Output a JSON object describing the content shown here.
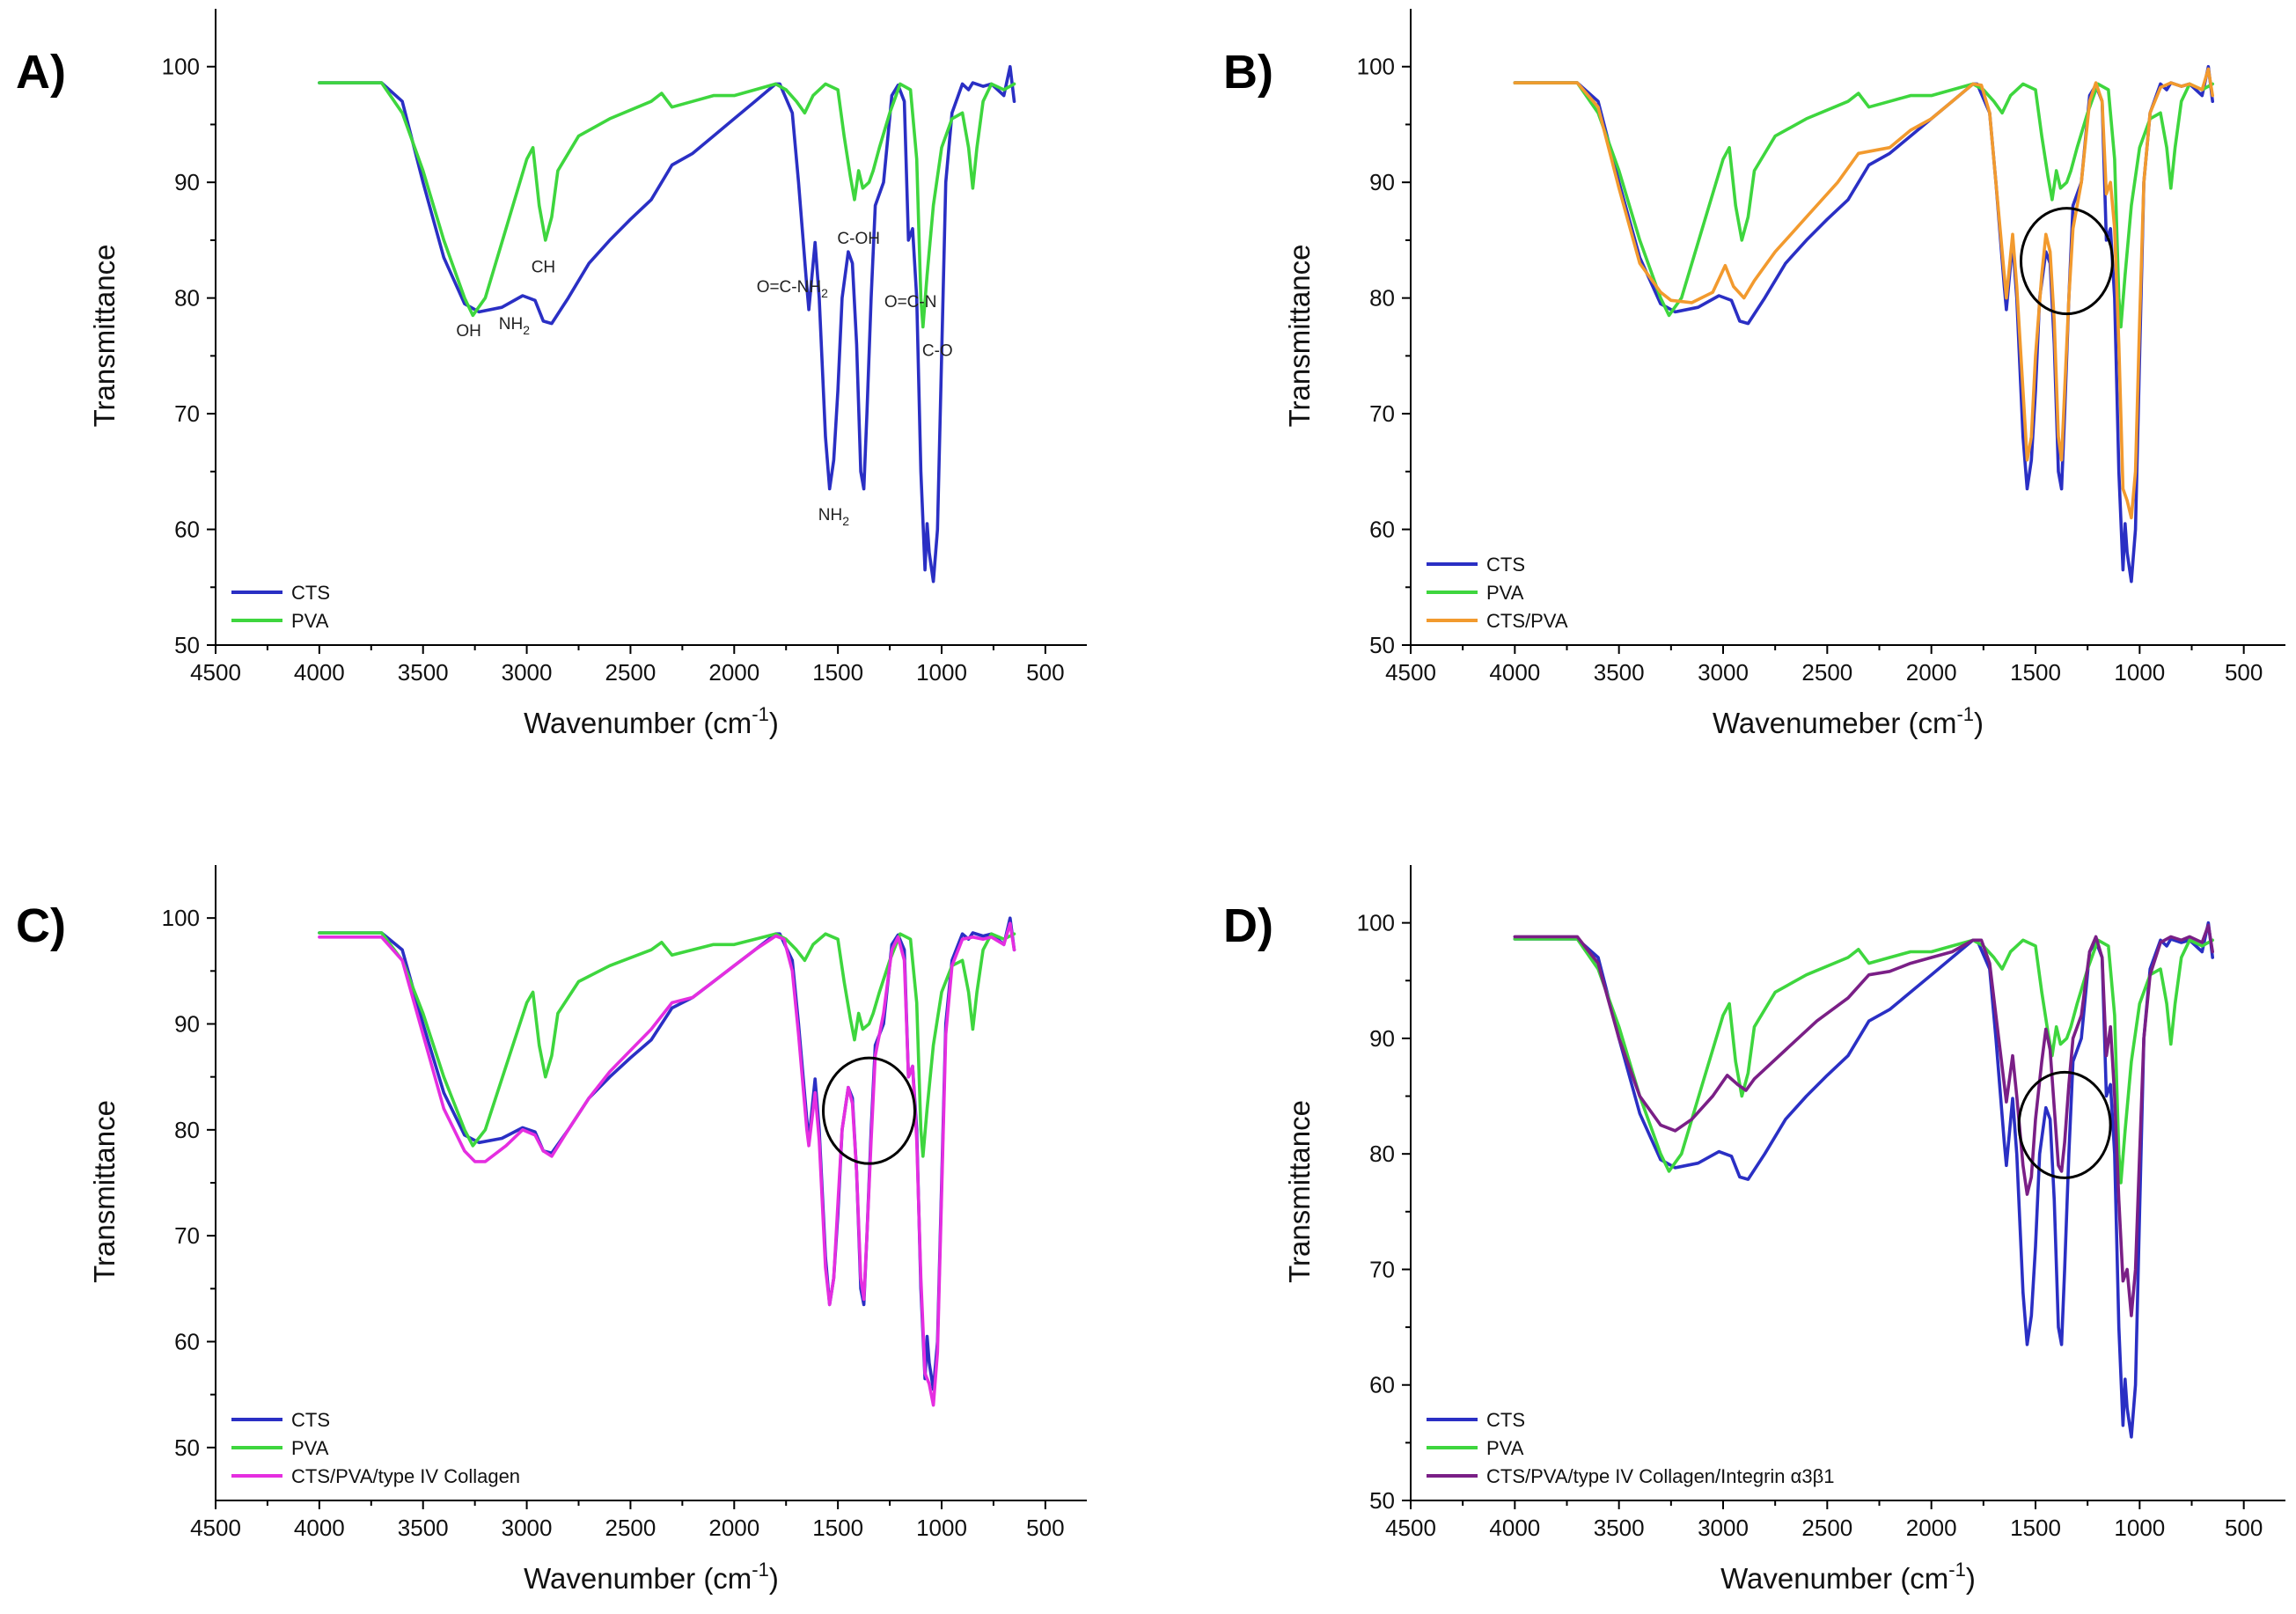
{
  "figure_labels": {
    "panel_letters": [
      "A)",
      "B)",
      "C)",
      "D)"
    ]
  },
  "chart_data": [
    {
      "type": "line",
      "panel": "A)",
      "title": "",
      "xlabel": "Wavenumber (cm-1)",
      "ylabel": "Transmittance",
      "xlim": [
        4500,
        300
      ],
      "ylim": [
        50,
        105
      ],
      "xticks": [
        4500,
        4000,
        3500,
        3000,
        2500,
        2000,
        1500,
        1000,
        500
      ],
      "yticks": [
        50,
        60,
        70,
        80,
        90,
        100
      ],
      "legend": "bottom-left",
      "series": [
        {
          "name": "CTS",
          "color": "#2a2fc4",
          "key": "CTS"
        },
        {
          "name": "PVA",
          "color": "#3ed63e",
          "key": "PVA"
        }
      ],
      "annotations": [
        {
          "text": "OH",
          "x": 3280,
          "y": 76.7
        },
        {
          "text": "NH2",
          "x": 3060,
          "y": 77.3
        },
        {
          "text": "CH",
          "x": 2920,
          "y": 82.2
        },
        {
          "text": "O=C-NH2",
          "x": 1720,
          "y": 80.5
        },
        {
          "text": "C-OH",
          "x": 1400,
          "y": 84.7
        },
        {
          "text": "O=C-N",
          "x": 1150,
          "y": 79.2
        },
        {
          "text": "NH2",
          "x": 1520,
          "y": 60.8
        },
        {
          "text": "C-O",
          "x": 1020,
          "y": 75.0
        }
      ],
      "circle": null
    },
    {
      "type": "line",
      "panel": "B)",
      "title": "",
      "xlabel": "Wavenumeber (cm-1)",
      "ylabel": "Transmittance",
      "xlim": [
        4500,
        300
      ],
      "ylim": [
        50,
        105
      ],
      "xticks": [
        4500,
        4000,
        3500,
        3000,
        2500,
        2000,
        1500,
        1000,
        500
      ],
      "yticks": [
        50,
        60,
        70,
        80,
        90,
        100
      ],
      "legend": "bottom-left",
      "series": [
        {
          "name": "CTS",
          "color": "#2a2fc4",
          "key": "CTS"
        },
        {
          "name": "PVA",
          "color": "#3ed63e",
          "key": "PVA"
        },
        {
          "name": "CTS/PVA",
          "color": "#f29a2e",
          "key": "CTSPVA"
        }
      ],
      "annotations": [],
      "circle": {
        "x": 1350,
        "y": 83.2
      }
    },
    {
      "type": "line",
      "panel": "C)",
      "title": "",
      "xlabel": "Wavenumber (cm-1)",
      "ylabel": "Transmittance",
      "xlim": [
        4500,
        300
      ],
      "ylim": [
        45,
        105
      ],
      "xticks": [
        4500,
        4000,
        3500,
        3000,
        2500,
        2000,
        1500,
        1000,
        500
      ],
      "yticks": [
        50,
        60,
        70,
        80,
        90,
        100
      ],
      "legend": "bottom-left",
      "series": [
        {
          "name": "CTS",
          "color": "#2a2fc4",
          "key": "CTS"
        },
        {
          "name": "PVA",
          "color": "#3ed63e",
          "key": "PVA"
        },
        {
          "name": "CTS/PVA/type IV Collagen",
          "color": "#e52ee0",
          "key": "COL"
        }
      ],
      "annotations": [],
      "circle": {
        "x": 1350,
        "y": 81.8
      }
    },
    {
      "type": "line",
      "panel": "D)",
      "title": "",
      "xlabel": "Wavenumber (cm-1)",
      "ylabel": "Transmittance",
      "xlim": [
        4500,
        300
      ],
      "ylim": [
        50,
        105
      ],
      "xticks": [
        4500,
        4000,
        3500,
        3000,
        2500,
        2000,
        1500,
        1000,
        500
      ],
      "yticks": [
        50,
        60,
        70,
        80,
        90,
        100
      ],
      "legend": "bottom-left",
      "series": [
        {
          "name": "CTS",
          "color": "#2a2fc4",
          "key": "CTS"
        },
        {
          "name": "PVA",
          "color": "#3ed63e",
          "key": "PVA"
        },
        {
          "name": "CTS/PVA/type IV Collagen/Integrin α3β1",
          "color": "#7a1f86",
          "key": "INT"
        }
      ],
      "annotations": [],
      "circle": {
        "x": 1360,
        "y": 82.5
      }
    }
  ],
  "spectra": {
    "CTS": [
      [
        4000,
        98.6
      ],
      [
        3700,
        98.6
      ],
      [
        3600,
        97.0
      ],
      [
        3500,
        90.0
      ],
      [
        3400,
        83.5
      ],
      [
        3300,
        79.5
      ],
      [
        3230,
        78.8
      ],
      [
        3120,
        79.2
      ],
      [
        3020,
        80.2
      ],
      [
        2960,
        79.8
      ],
      [
        2920,
        78.0
      ],
      [
        2880,
        77.8
      ],
      [
        2800,
        80.0
      ],
      [
        2700,
        83.0
      ],
      [
        2600,
        85.0
      ],
      [
        2500,
        86.8
      ],
      [
        2400,
        88.5
      ],
      [
        2300,
        91.5
      ],
      [
        2200,
        92.5
      ],
      [
        2100,
        94.0
      ],
      [
        2000,
        95.5
      ],
      [
        1900,
        97.0
      ],
      [
        1800,
        98.5
      ],
      [
        1780,
        98.5
      ],
      [
        1720,
        96.0
      ],
      [
        1690,
        90.0
      ],
      [
        1650,
        81.0
      ],
      [
        1640,
        79.0
      ],
      [
        1610,
        84.8
      ],
      [
        1590,
        80.0
      ],
      [
        1560,
        68.0
      ],
      [
        1540,
        63.5
      ],
      [
        1520,
        66.0
      ],
      [
        1500,
        72.0
      ],
      [
        1480,
        80.0
      ],
      [
        1450,
        84.0
      ],
      [
        1430,
        83.0
      ],
      [
        1410,
        76.0
      ],
      [
        1390,
        65.0
      ],
      [
        1375,
        63.5
      ],
      [
        1360,
        70.0
      ],
      [
        1340,
        80.0
      ],
      [
        1320,
        88.0
      ],
      [
        1280,
        90.0
      ],
      [
        1240,
        97.5
      ],
      [
        1210,
        98.4
      ],
      [
        1180,
        97.0
      ],
      [
        1160,
        85.0
      ],
      [
        1140,
        86.0
      ],
      [
        1120,
        80.0
      ],
      [
        1100,
        65.0
      ],
      [
        1080,
        56.5
      ],
      [
        1070,
        60.5
      ],
      [
        1060,
        58.0
      ],
      [
        1040,
        55.5
      ],
      [
        1020,
        60.0
      ],
      [
        1000,
        75.0
      ],
      [
        980,
        90.0
      ],
      [
        950,
        96.0
      ],
      [
        900,
        98.5
      ],
      [
        870,
        98.0
      ],
      [
        850,
        98.6
      ],
      [
        800,
        98.3
      ],
      [
        760,
        98.5
      ],
      [
        700,
        97.5
      ],
      [
        670,
        100.0
      ],
      [
        650,
        97.0
      ]
    ],
    "PVA": [
      [
        4000,
        98.6
      ],
      [
        3700,
        98.6
      ],
      [
        3600,
        96.0
      ],
      [
        3500,
        91.0
      ],
      [
        3400,
        85.0
      ],
      [
        3300,
        80.0
      ],
      [
        3260,
        78.5
      ],
      [
        3200,
        80.0
      ],
      [
        3100,
        86.0
      ],
      [
        3000,
        92.0
      ],
      [
        2970,
        93.0
      ],
      [
        2940,
        88.0
      ],
      [
        2910,
        85.0
      ],
      [
        2880,
        87.0
      ],
      [
        2850,
        91.0
      ],
      [
        2750,
        94.0
      ],
      [
        2600,
        95.5
      ],
      [
        2400,
        97.0
      ],
      [
        2350,
        97.7
      ],
      [
        2300,
        96.5
      ],
      [
        2200,
        97.0
      ],
      [
        2100,
        97.5
      ],
      [
        2000,
        97.5
      ],
      [
        1900,
        98.0
      ],
      [
        1800,
        98.5
      ],
      [
        1750,
        98.0
      ],
      [
        1700,
        97.0
      ],
      [
        1660,
        96.0
      ],
      [
        1620,
        97.5
      ],
      [
        1560,
        98.5
      ],
      [
        1500,
        98.0
      ],
      [
        1470,
        94.0
      ],
      [
        1440,
        90.5
      ],
      [
        1420,
        88.5
      ],
      [
        1400,
        91.0
      ],
      [
        1380,
        89.5
      ],
      [
        1350,
        90.0
      ],
      [
        1330,
        91.0
      ],
      [
        1300,
        93.0
      ],
      [
        1250,
        96.0
      ],
      [
        1200,
        98.5
      ],
      [
        1150,
        98.0
      ],
      [
        1120,
        92.0
      ],
      [
        1100,
        80.0
      ],
      [
        1090,
        77.5
      ],
      [
        1070,
        82.0
      ],
      [
        1040,
        88.0
      ],
      [
        1000,
        93.0
      ],
      [
        950,
        95.5
      ],
      [
        900,
        96.0
      ],
      [
        870,
        93.0
      ],
      [
        850,
        89.5
      ],
      [
        830,
        93.0
      ],
      [
        800,
        97.0
      ],
      [
        760,
        98.5
      ],
      [
        700,
        98.0
      ],
      [
        650,
        98.5
      ]
    ],
    "CTSPVA": [
      [
        4000,
        98.6
      ],
      [
        3700,
        98.6
      ],
      [
        3600,
        96.5
      ],
      [
        3500,
        89.5
      ],
      [
        3400,
        83.0
      ],
      [
        3300,
        80.5
      ],
      [
        3250,
        79.8
      ],
      [
        3150,
        79.6
      ],
      [
        3050,
        80.5
      ],
      [
        2990,
        82.8
      ],
      [
        2950,
        81.0
      ],
      [
        2900,
        80.0
      ],
      [
        2850,
        81.5
      ],
      [
        2750,
        84.0
      ],
      [
        2600,
        87.0
      ],
      [
        2450,
        90.0
      ],
      [
        2350,
        92.5
      ],
      [
        2200,
        93.0
      ],
      [
        2100,
        94.5
      ],
      [
        2000,
        95.5
      ],
      [
        1900,
        97.0
      ],
      [
        1800,
        98.5
      ],
      [
        1760,
        98.4
      ],
      [
        1720,
        96.0
      ],
      [
        1690,
        90.0
      ],
      [
        1650,
        82.0
      ],
      [
        1640,
        80.0
      ],
      [
        1610,
        85.5
      ],
      [
        1590,
        81.0
      ],
      [
        1560,
        72.0
      ],
      [
        1540,
        66.0
      ],
      [
        1520,
        68.0
      ],
      [
        1500,
        75.0
      ],
      [
        1470,
        82.0
      ],
      [
        1450,
        85.5
      ],
      [
        1430,
        84.0
      ],
      [
        1410,
        78.0
      ],
      [
        1390,
        68.0
      ],
      [
        1375,
        66.0
      ],
      [
        1360,
        72.0
      ],
      [
        1340,
        80.0
      ],
      [
        1320,
        86.0
      ],
      [
        1280,
        90.0
      ],
      [
        1240,
        97.0
      ],
      [
        1210,
        98.6
      ],
      [
        1180,
        97.0
      ],
      [
        1160,
        89.0
      ],
      [
        1140,
        90.0
      ],
      [
        1120,
        86.0
      ],
      [
        1100,
        76.0
      ],
      [
        1080,
        63.5
      ],
      [
        1060,
        62.5
      ],
      [
        1040,
        61.0
      ],
      [
        1020,
        65.0
      ],
      [
        1000,
        78.0
      ],
      [
        980,
        90.0
      ],
      [
        950,
        96.0
      ],
      [
        900,
        98.2
      ],
      [
        850,
        98.6
      ],
      [
        800,
        98.3
      ],
      [
        760,
        98.5
      ],
      [
        700,
        98.0
      ],
      [
        670,
        99.8
      ],
      [
        650,
        97.5
      ]
    ],
    "COL": [
      [
        4000,
        98.2
      ],
      [
        3700,
        98.2
      ],
      [
        3600,
        96.0
      ],
      [
        3500,
        89.0
      ],
      [
        3400,
        82.0
      ],
      [
        3300,
        78.0
      ],
      [
        3250,
        77.0
      ],
      [
        3200,
        77.0
      ],
      [
        3100,
        78.5
      ],
      [
        3020,
        80.0
      ],
      [
        2960,
        79.5
      ],
      [
        2920,
        78.0
      ],
      [
        2880,
        77.5
      ],
      [
        2800,
        80.0
      ],
      [
        2700,
        83.0
      ],
      [
        2600,
        85.5
      ],
      [
        2500,
        87.5
      ],
      [
        2400,
        89.5
      ],
      [
        2300,
        92.0
      ],
      [
        2200,
        92.5
      ],
      [
        2100,
        94.0
      ],
      [
        2000,
        95.5
      ],
      [
        1900,
        97.0
      ],
      [
        1800,
        98.3
      ],
      [
        1760,
        98.0
      ],
      [
        1720,
        95.0
      ],
      [
        1690,
        89.0
      ],
      [
        1650,
        80.0
      ],
      [
        1640,
        78.5
      ],
      [
        1610,
        83.5
      ],
      [
        1590,
        79.0
      ],
      [
        1560,
        67.0
      ],
      [
        1540,
        63.5
      ],
      [
        1520,
        66.0
      ],
      [
        1500,
        73.0
      ],
      [
        1480,
        80.0
      ],
      [
        1450,
        84.0
      ],
      [
        1430,
        82.5
      ],
      [
        1410,
        76.0
      ],
      [
        1390,
        66.0
      ],
      [
        1375,
        64.0
      ],
      [
        1360,
        70.0
      ],
      [
        1340,
        79.0
      ],
      [
        1320,
        87.0
      ],
      [
        1280,
        91.0
      ],
      [
        1240,
        97.0
      ],
      [
        1210,
        98.2
      ],
      [
        1180,
        96.0
      ],
      [
        1160,
        85.0
      ],
      [
        1140,
        86.0
      ],
      [
        1120,
        79.0
      ],
      [
        1100,
        66.0
      ],
      [
        1080,
        57.0
      ],
      [
        1060,
        56.0
      ],
      [
        1040,
        54.0
      ],
      [
        1020,
        59.0
      ],
      [
        1000,
        74.0
      ],
      [
        980,
        89.0
      ],
      [
        950,
        95.5
      ],
      [
        900,
        98.0
      ],
      [
        850,
        98.2
      ],
      [
        800,
        98.0
      ],
      [
        760,
        98.2
      ],
      [
        700,
        97.5
      ],
      [
        670,
        99.5
      ],
      [
        650,
        97.0
      ]
    ],
    "INT": [
      [
        4000,
        98.8
      ],
      [
        3700,
        98.8
      ],
      [
        3600,
        96.5
      ],
      [
        3500,
        90.0
      ],
      [
        3400,
        85.0
      ],
      [
        3300,
        82.5
      ],
      [
        3230,
        82.0
      ],
      [
        3150,
        83.0
      ],
      [
        3050,
        85.0
      ],
      [
        2980,
        86.8
      ],
      [
        2930,
        86.0
      ],
      [
        2890,
        85.5
      ],
      [
        2850,
        86.5
      ],
      [
        2700,
        89.0
      ],
      [
        2550,
        91.5
      ],
      [
        2400,
        93.5
      ],
      [
        2300,
        95.5
      ],
      [
        2200,
        95.8
      ],
      [
        2100,
        96.5
      ],
      [
        2000,
        97.0
      ],
      [
        1900,
        97.5
      ],
      [
        1800,
        98.5
      ],
      [
        1760,
        98.5
      ],
      [
        1720,
        96.5
      ],
      [
        1690,
        92.0
      ],
      [
        1650,
        86.0
      ],
      [
        1640,
        84.5
      ],
      [
        1610,
        88.5
      ],
      [
        1590,
        85.0
      ],
      [
        1560,
        79.0
      ],
      [
        1540,
        76.5
      ],
      [
        1520,
        78.0
      ],
      [
        1500,
        83.0
      ],
      [
        1470,
        88.0
      ],
      [
        1450,
        90.8
      ],
      [
        1430,
        89.0
      ],
      [
        1410,
        84.0
      ],
      [
        1390,
        79.0
      ],
      [
        1375,
        78.5
      ],
      [
        1360,
        81.0
      ],
      [
        1340,
        86.0
      ],
      [
        1320,
        90.0
      ],
      [
        1280,
        92.0
      ],
      [
        1240,
        97.5
      ],
      [
        1210,
        98.8
      ],
      [
        1180,
        97.0
      ],
      [
        1160,
        88.5
      ],
      [
        1140,
        91.0
      ],
      [
        1120,
        85.0
      ],
      [
        1100,
        76.0
      ],
      [
        1080,
        69.0
      ],
      [
        1060,
        70.0
      ],
      [
        1040,
        66.0
      ],
      [
        1020,
        70.0
      ],
      [
        1000,
        80.0
      ],
      [
        980,
        90.0
      ],
      [
        950,
        95.5
      ],
      [
        900,
        98.3
      ],
      [
        850,
        98.8
      ],
      [
        800,
        98.5
      ],
      [
        760,
        98.8
      ],
      [
        700,
        98.3
      ],
      [
        670,
        99.8
      ],
      [
        650,
        97.5
      ]
    ]
  }
}
